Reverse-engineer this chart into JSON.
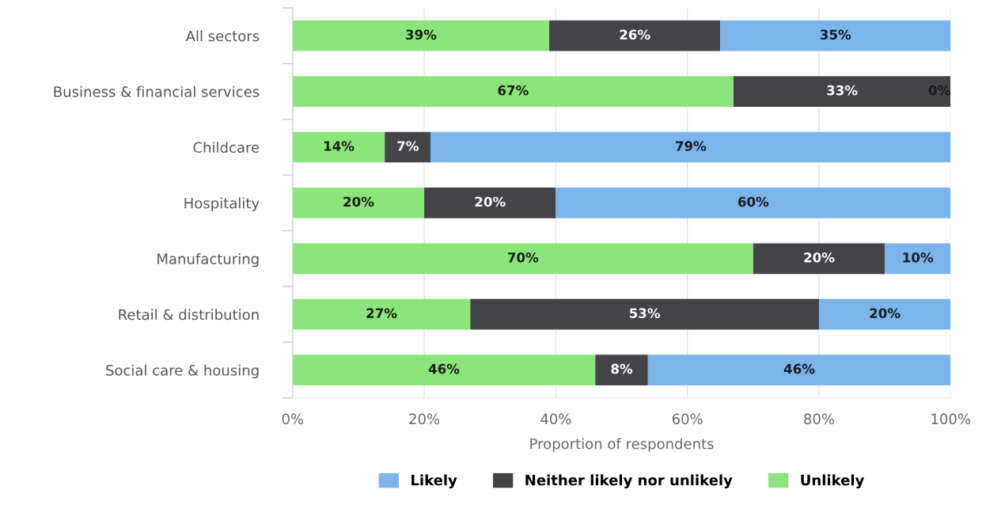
{
  "chart_data": {
    "type": "bar",
    "orientation": "horizontal",
    "stacked": true,
    "xlabel": "Proportion of respondents",
    "categories": [
      "All sectors",
      "Business & financial services",
      "Childcare",
      "Hospitality",
      "Manufacturing",
      "Retail & distribution",
      "Social care & housing"
    ],
    "series": [
      {
        "name": "Unlikely",
        "color": "#8ce57a",
        "values": [
          39,
          67,
          14,
          20,
          70,
          27,
          46
        ],
        "value_labels": [
          "39%",
          "67%",
          "14%",
          "20%",
          "70%",
          "27%",
          "46%"
        ]
      },
      {
        "name": "Neither likely nor unlikely",
        "color": "#434348",
        "values": [
          26,
          33,
          7,
          20,
          20,
          53,
          8
        ],
        "value_labels": [
          "26%",
          "33%",
          "7%",
          "20%",
          "20%",
          "53%",
          "8%"
        ]
      },
      {
        "name": "Likely",
        "color": "#7cb4ec",
        "values": [
          35,
          0,
          79,
          60,
          10,
          20,
          46
        ],
        "value_labels": [
          "35%",
          "0%",
          "79%",
          "60%",
          "10%",
          "20%",
          "46%"
        ]
      }
    ],
    "xlim": [
      0,
      100
    ],
    "xticks": [
      {
        "value": 0,
        "label": "0%"
      },
      {
        "value": 20,
        "label": "20%"
      },
      {
        "value": 40,
        "label": "40%"
      },
      {
        "value": 60,
        "label": "60%"
      },
      {
        "value": 80,
        "label": "80%"
      },
      {
        "value": 100,
        "label": "100%"
      }
    ],
    "grid": "x",
    "legend": "bottom"
  }
}
